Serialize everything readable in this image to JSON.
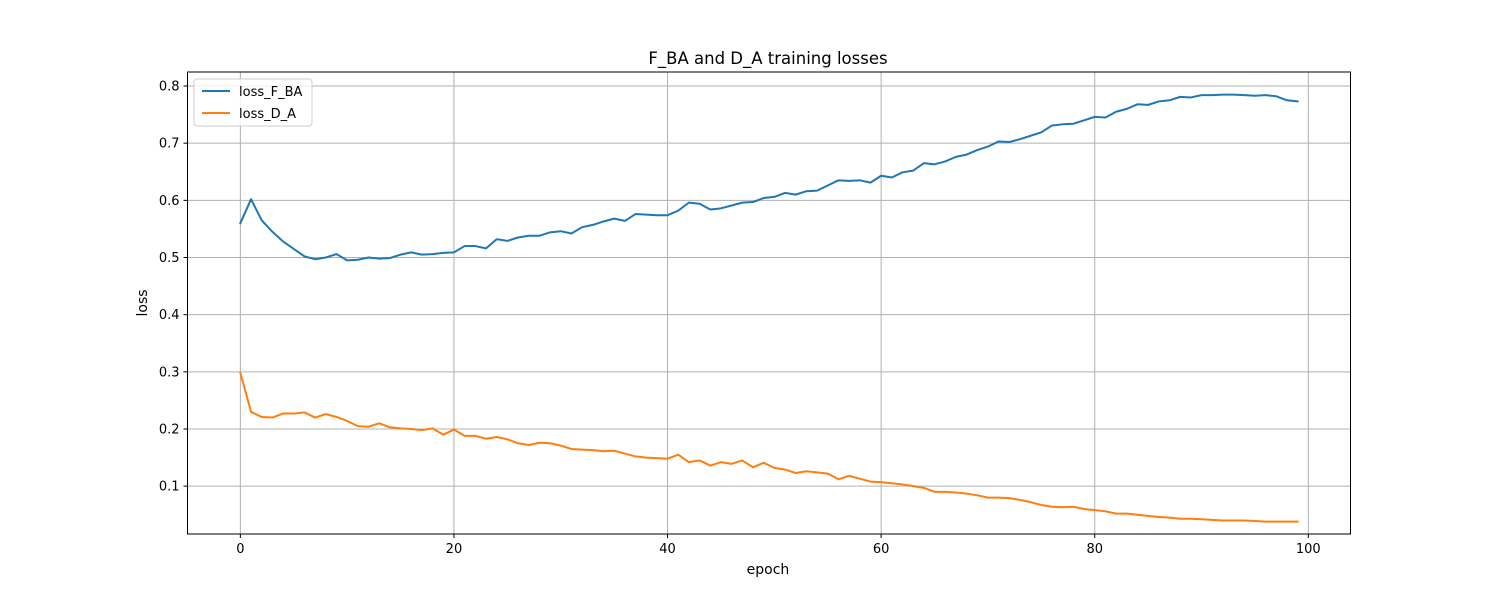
{
  "chart_data": {
    "type": "line",
    "title": "F_BA and D_A training losses",
    "xlabel": "epoch",
    "ylabel": "loss",
    "xlim": [
      -4.95,
      103.95
    ],
    "ylim": [
      0.0163,
      0.8245
    ],
    "xticks": [
      0,
      20,
      40,
      60,
      80,
      100
    ],
    "yticks": [
      0.1,
      0.2,
      0.3,
      0.4,
      0.5,
      0.6,
      0.7,
      0.8
    ],
    "grid": true,
    "legend_position": "upper-left",
    "x": [
      0,
      1,
      2,
      3,
      4,
      5,
      6,
      7,
      8,
      9,
      10,
      11,
      12,
      13,
      14,
      15,
      16,
      17,
      18,
      19,
      20,
      21,
      22,
      23,
      24,
      25,
      26,
      27,
      28,
      29,
      30,
      31,
      32,
      33,
      34,
      35,
      36,
      37,
      38,
      39,
      40,
      41,
      42,
      43,
      44,
      45,
      46,
      47,
      48,
      49,
      50,
      51,
      52,
      53,
      54,
      55,
      56,
      57,
      58,
      59,
      60,
      61,
      62,
      63,
      64,
      65,
      66,
      67,
      68,
      69,
      70,
      71,
      72,
      73,
      74,
      75,
      76,
      77,
      78,
      79,
      80,
      81,
      82,
      83,
      84,
      85,
      86,
      87,
      88,
      89,
      90,
      91,
      92,
      93,
      94,
      95,
      96,
      97,
      98,
      99
    ],
    "series": [
      {
        "name": "loss_F_BA",
        "color": "#1f77b4",
        "values": [
          0.56,
          0.602,
          0.565,
          0.545,
          0.528,
          0.515,
          0.502,
          0.497,
          0.5,
          0.506,
          0.495,
          0.496,
          0.5,
          0.498,
          0.499,
          0.505,
          0.509,
          0.505,
          0.506,
          0.508,
          0.509,
          0.52,
          0.52,
          0.516,
          0.532,
          0.529,
          0.535,
          0.538,
          0.538,
          0.544,
          0.546,
          0.542,
          0.553,
          0.557,
          0.563,
          0.568,
          0.564,
          0.576,
          0.575,
          0.574,
          0.574,
          0.582,
          0.596,
          0.594,
          0.584,
          0.586,
          0.591,
          0.596,
          0.597,
          0.604,
          0.606,
          0.613,
          0.61,
          0.616,
          0.617,
          0.626,
          0.635,
          0.634,
          0.635,
          0.631,
          0.643,
          0.64,
          0.649,
          0.652,
          0.665,
          0.663,
          0.668,
          0.676,
          0.68,
          0.688,
          0.694,
          0.703,
          0.702,
          0.707,
          0.713,
          0.719,
          0.731,
          0.733,
          0.734,
          0.74,
          0.746,
          0.745,
          0.755,
          0.76,
          0.768,
          0.767,
          0.773,
          0.775,
          0.781,
          0.78,
          0.784,
          0.784,
          0.785,
          0.785,
          0.784,
          0.783,
          0.784,
          0.782,
          0.775,
          0.773
        ]
      },
      {
        "name": "loss_D_A",
        "color": "#ff7f0e",
        "values": [
          0.298,
          0.23,
          0.221,
          0.22,
          0.227,
          0.227,
          0.229,
          0.22,
          0.226,
          0.221,
          0.214,
          0.205,
          0.204,
          0.21,
          0.203,
          0.201,
          0.2,
          0.198,
          0.201,
          0.19,
          0.199,
          0.188,
          0.188,
          0.183,
          0.186,
          0.182,
          0.175,
          0.172,
          0.176,
          0.175,
          0.171,
          0.165,
          0.164,
          0.163,
          0.161,
          0.162,
          0.157,
          0.152,
          0.15,
          0.149,
          0.148,
          0.155,
          0.142,
          0.145,
          0.136,
          0.142,
          0.139,
          0.145,
          0.133,
          0.141,
          0.132,
          0.129,
          0.123,
          0.126,
          0.124,
          0.122,
          0.112,
          0.118,
          0.113,
          0.108,
          0.107,
          0.105,
          0.103,
          0.1,
          0.097,
          0.09,
          0.09,
          0.089,
          0.087,
          0.084,
          0.08,
          0.08,
          0.079,
          0.076,
          0.072,
          0.067,
          0.064,
          0.063,
          0.064,
          0.06,
          0.058,
          0.056,
          0.052,
          0.052,
          0.05,
          0.048,
          0.046,
          0.045,
          0.043,
          0.043,
          0.042,
          0.041,
          0.04,
          0.04,
          0.04,
          0.039,
          0.038,
          0.038,
          0.038,
          0.038
        ]
      }
    ]
  }
}
